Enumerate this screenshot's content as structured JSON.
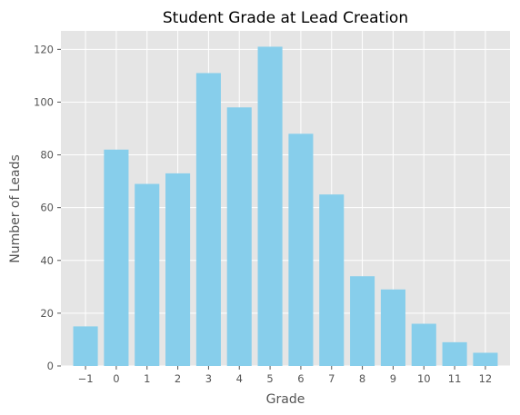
{
  "chart_data": {
    "type": "bar",
    "title": "Student Grade at Lead Creation",
    "xlabel": "Grade",
    "ylabel": "Number of Leads",
    "categories": [
      "−1",
      "0",
      "1",
      "2",
      "3",
      "4",
      "5",
      "6",
      "7",
      "8",
      "9",
      "10",
      "11",
      "12"
    ],
    "values": [
      15,
      82,
      69,
      73,
      111,
      98,
      121,
      88,
      65,
      34,
      29,
      16,
      9,
      5
    ],
    "ylim": [
      0,
      127
    ],
    "yticks": [
      0,
      20,
      40,
      60,
      80,
      100,
      120
    ],
    "grid": true,
    "colors": {
      "bar": "#87ceeb",
      "background": "#e5e5e5",
      "grid": "#ffffff"
    }
  }
}
